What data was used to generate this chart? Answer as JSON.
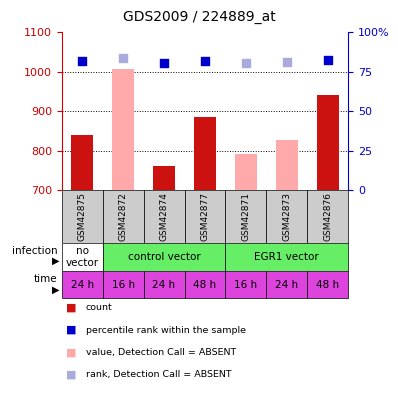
{
  "title": "GDS2009 / 224889_at",
  "samples": [
    "GSM42875",
    "GSM42872",
    "GSM42874",
    "GSM42877",
    "GSM42871",
    "GSM42873",
    "GSM42876"
  ],
  "count_values": [
    840,
    null,
    762,
    885,
    null,
    null,
    942
  ],
  "count_absent": [
    null,
    1007,
    null,
    null,
    793,
    827,
    null
  ],
  "rank_values": [
    1027,
    null,
    1023,
    1028,
    null,
    null,
    1030
  ],
  "rank_absent": [
    null,
    1036,
    null,
    null,
    1022,
    1025,
    null
  ],
  "ylim_left": [
    700,
    1100
  ],
  "ylim_right": [
    0,
    100
  ],
  "yticks_left": [
    700,
    800,
    900,
    1000,
    1100
  ],
  "yticks_right": [
    0,
    25,
    50,
    75,
    100
  ],
  "infection_groups": [
    {
      "label": "no\nvector",
      "start": 0,
      "end": 1,
      "color": "#ffffff"
    },
    {
      "label": "control vector",
      "start": 1,
      "end": 4,
      "color": "#66ee66"
    },
    {
      "label": "EGR1 vector",
      "start": 4,
      "end": 7,
      "color": "#66ee66"
    }
  ],
  "time_labels": [
    "24 h",
    "16 h",
    "24 h",
    "48 h",
    "16 h",
    "24 h",
    "48 h"
  ],
  "time_color": "#dd44dd",
  "infection_color_no": "#ffffff",
  "infection_color_yes": "#66ee66",
  "bar_color_present": "#cc1111",
  "bar_color_absent": "#ffaaaa",
  "dot_color_present": "#0000cc",
  "dot_color_absent": "#aaaadd",
  "sample_bg_color": "#cccccc",
  "left_axis_color": "#cc0000",
  "right_axis_color": "#0000cc",
  "bar_width": 0.55,
  "dot_size": 35,
  "legend_items": [
    {
      "color": "#cc1111",
      "label": "count"
    },
    {
      "color": "#0000cc",
      "label": "percentile rank within the sample"
    },
    {
      "color": "#ffaaaa",
      "label": "value, Detection Call = ABSENT"
    },
    {
      "color": "#aaaadd",
      "label": "rank, Detection Call = ABSENT"
    }
  ]
}
